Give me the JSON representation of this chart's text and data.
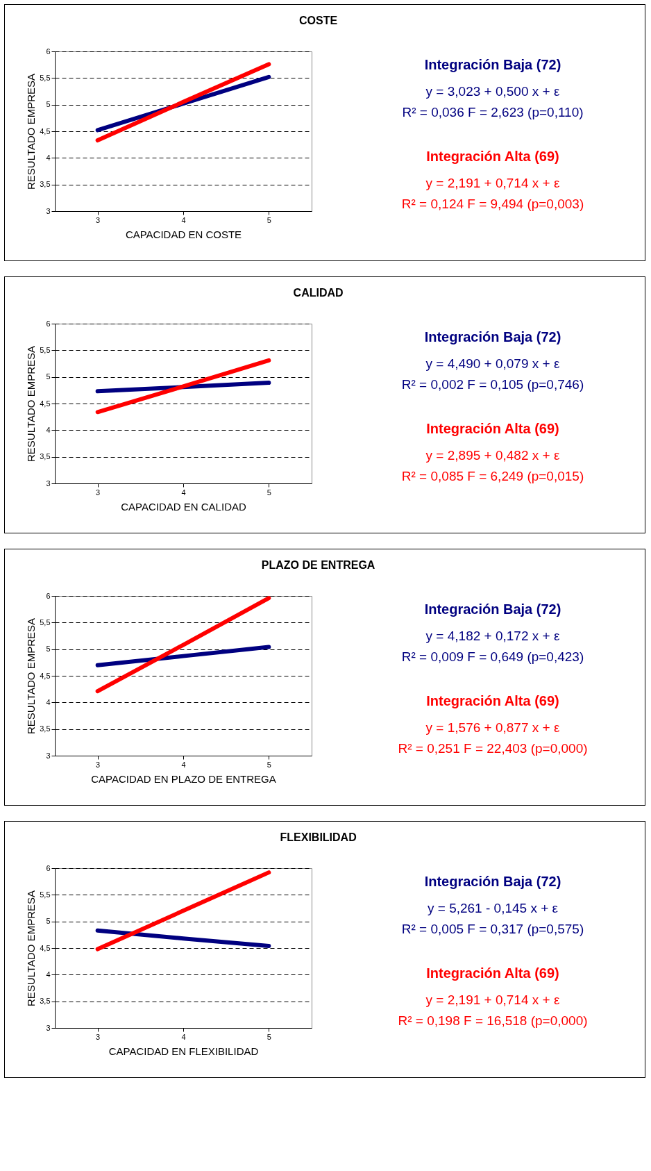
{
  "chart_data": [
    {
      "type": "line",
      "title": "COSTE",
      "xlabel": "CAPACIDAD EN COSTE",
      "ylabel": "RESULTADO EMPRESA",
      "categories": [
        "3",
        "4",
        "5"
      ],
      "ylim": [
        3,
        6
      ],
      "yticks": [
        3,
        {
          "value": 3.5,
          "label": "3,5"
        },
        4,
        {
          "value": 4.5,
          "label": "4,5"
        },
        5,
        {
          "value": 5.5,
          "label": "5,5"
        },
        6
      ],
      "grid": "y",
      "line_style": "solid",
      "series": [
        {
          "name": "Integración Baja (72)",
          "color": "#000080",
          "values": [
            4.52,
            5.02,
            5.52
          ]
        },
        {
          "name": "Integración Alta (69)",
          "color": "#ff0000",
          "values": [
            4.33,
            5.05,
            5.76
          ]
        }
      ],
      "annotations": [
        "y = 3,023 + 0,500 x + ε",
        "R² = 0,036    F = 2,623 (p=0,110)",
        "y = 2,191 + 0,714 x + ε",
        "R² = 0,124    F = 9,494 (p=0,003)"
      ]
    },
    {
      "type": "line",
      "title": "CALIDAD",
      "xlabel": "CAPACIDAD EN CALIDAD",
      "ylabel": "RESULTADO EMPRESA",
      "categories": [
        "3",
        "4",
        "5"
      ],
      "ylim": [
        3,
        6
      ],
      "yticks": [
        3,
        {
          "value": 3.5,
          "label": "3,5"
        },
        4,
        {
          "value": 4.5,
          "label": "4,5"
        },
        5,
        {
          "value": 5.5,
          "label": "5,5"
        },
        6
      ],
      "grid": "y",
      "line_style": "solid",
      "series": [
        {
          "name": "Integración Baja (72)",
          "color": "#000080",
          "values": [
            4.73,
            4.81,
            4.89
          ]
        },
        {
          "name": "Integración Alta (69)",
          "color": "#ff0000",
          "values": [
            4.34,
            4.82,
            5.31
          ]
        }
      ],
      "annotations": [
        "y = 4,490 + 0,079 x + ε",
        "R² = 0,002    F = 0,105 (p=0,746)",
        "y = 2,895 + 0,482 x + ε",
        "R² = 0,085    F = 6,249 (p=0,015)"
      ]
    },
    {
      "type": "line",
      "title": "PLAZO DE ENTREGA",
      "xlabel": "CAPACIDAD EN PLAZO DE ENTREGA",
      "ylabel": "RESULTADO EMPRESA",
      "categories": [
        "3",
        "4",
        "5"
      ],
      "ylim": [
        3,
        6
      ],
      "yticks": [
        3,
        {
          "value": 3.5,
          "label": "3,5"
        },
        4,
        {
          "value": 4.5,
          "label": "4,5"
        },
        5,
        {
          "value": 5.5,
          "label": "5,5"
        },
        6
      ],
      "grid": "y",
      "line_style": "solid",
      "series": [
        {
          "name": "Integración Baja (72)",
          "color": "#000080",
          "values": [
            4.7,
            4.87,
            5.04
          ]
        },
        {
          "name": "Integración Alta (69)",
          "color": "#ff0000",
          "values": [
            4.21,
            5.08,
            5.96
          ]
        }
      ],
      "annotations": [
        "y = 4,182 + 0,172 x + ε",
        "R² = 0,009    F = 0,649 (p=0,423)",
        "y = 1,576 + 0,877 x + ε",
        "R² = 0,251    F = 22,403 (p=0,000)"
      ]
    },
    {
      "type": "line",
      "title": "FLEXIBILIDAD",
      "xlabel": "CAPACIDAD EN FLEXIBILIDAD",
      "ylabel": "RESULTADO EMPRESA",
      "categories": [
        "3",
        "4",
        "5"
      ],
      "ylim": [
        3,
        6
      ],
      "yticks": [
        3,
        {
          "value": 3.5,
          "label": "3,5"
        },
        4,
        {
          "value": 4.5,
          "label": "4,5"
        },
        5,
        {
          "value": 5.5,
          "label": "5,5"
        },
        6
      ],
      "grid": "y",
      "line_style": "solid",
      "series": [
        {
          "name": "Integración Baja (72)",
          "color": "#000080",
          "values": [
            4.83,
            4.68,
            4.54
          ]
        },
        {
          "name": "Integración Alta (69)",
          "color": "#ff0000",
          "values": [
            4.48,
            5.2,
            5.92
          ]
        }
      ],
      "annotations": [
        "y = 5,261 - 0,145 x + ε",
        "R² = 0,005    F = 0,317 (p=0,575)",
        "y = 2,191 + 0,714 x + ε",
        "R² = 0,198    F = 16,518 (p=0,000)"
      ]
    }
  ]
}
